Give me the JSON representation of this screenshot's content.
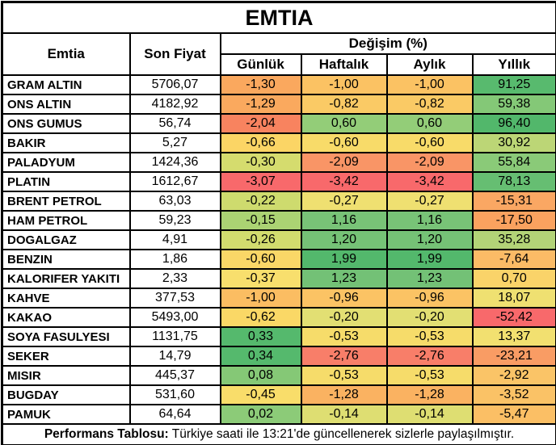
{
  "title": "EMTIA",
  "columns": {
    "emtia": "Emtia",
    "son_fiyat": "Son Fiyat",
    "degisim": "Değişim (%)",
    "sub": [
      "Günlük",
      "Haftalık",
      "Aylık",
      "Yıllık"
    ]
  },
  "rows": [
    {
      "name": "GRAM ALTIN",
      "price": "5706,07",
      "changes": [
        "-1,30",
        "-1,00",
        "-1,00",
        "91,25"
      ],
      "colors": [
        "#FAA85E",
        "#FBC263",
        "#FBC263",
        "#58BA6E"
      ]
    },
    {
      "name": "ONS ALTIN",
      "price": "4182,92",
      "changes": [
        "-1,29",
        "-0,82",
        "-0,82",
        "59,38"
      ],
      "colors": [
        "#FAA95E",
        "#FACA65",
        "#FACA65",
        "#84C877"
      ]
    },
    {
      "name": "ONS GUMUS",
      "price": "56,74",
      "changes": [
        "-2,04",
        "0,60",
        "0,60",
        "96,40"
      ],
      "colors": [
        "#F8835F",
        "#93CD78",
        "#93CD78",
        "#52B76B"
      ]
    },
    {
      "name": "BAKIR",
      "price": "5,27",
      "changes": [
        "-0,66",
        "-0,60",
        "-0,60",
        "30,92"
      ],
      "colors": [
        "#FBD565",
        "#F8DB69",
        "#F8DB69",
        "#BCD676"
      ]
    },
    {
      "name": "PALADYUM",
      "price": "1424,36",
      "changes": [
        "-0,30",
        "-2,09",
        "-2,09",
        "55,84"
      ],
      "colors": [
        "#D5DC6E",
        "#F99566",
        "#F99566",
        "#8ACA78"
      ]
    },
    {
      "name": "PLATIN",
      "price": "1612,67",
      "changes": [
        "-3,07",
        "-3,42",
        "-3,42",
        "78,13"
      ],
      "colors": [
        "#F8696B",
        "#F8696B",
        "#F8696B",
        "#66BE72"
      ]
    },
    {
      "name": "BRENT PETROL",
      "price": "63,03",
      "changes": [
        "-0,22",
        "-0,27",
        "-0,27",
        "-15,31"
      ],
      "colors": [
        "#CEDB6E",
        "#EFE071",
        "#EFE071",
        "#FAA763"
      ]
    },
    {
      "name": "HAM PETROL",
      "price": "59,23",
      "changes": [
        "-0,15",
        "1,16",
        "1,16",
        "-17,50"
      ],
      "colors": [
        "#ABD373",
        "#78C377",
        "#78C377",
        "#FAA25F"
      ]
    },
    {
      "name": "DOGALGAZ",
      "price": "4,91",
      "changes": [
        "-0,26",
        "1,20",
        "1,20",
        "35,28"
      ],
      "colors": [
        "#D2DC6E",
        "#75C276",
        "#75C276",
        "#B3D377"
      ]
    },
    {
      "name": "BENZIN",
      "price": "1,86",
      "changes": [
        "-0,60",
        "1,99",
        "1,99",
        "-7,64"
      ],
      "colors": [
        "#FAD767",
        "#53B86C",
        "#53B86C",
        "#FBBB66"
      ]
    },
    {
      "name": "KALORIFER YAKITI",
      "price": "2,33",
      "changes": [
        "-0,37",
        "1,23",
        "1,23",
        "0,70"
      ],
      "colors": [
        "#F8DF6D",
        "#73C176",
        "#73C176",
        "#FAD369"
      ]
    },
    {
      "name": "KAHVE",
      "price": "377,53",
      "changes": [
        "-1,00",
        "-0,96",
        "-0,96",
        "18,07"
      ],
      "colors": [
        "#FBBD62",
        "#FBC364",
        "#FBC364",
        "#EFE071"
      ]
    },
    {
      "name": "KAKAO",
      "price": "5493,00",
      "changes": [
        "-0,62",
        "-0,20",
        "-0,20",
        "-52,42"
      ],
      "colors": [
        "#FAD866",
        "#E2DF73",
        "#E2DF73",
        "#F8696B"
      ]
    },
    {
      "name": "SOYA FASULYESI",
      "price": "1131,75",
      "changes": [
        "0,33",
        "-0,53",
        "-0,53",
        "13,37"
      ],
      "colors": [
        "#55B96D",
        "#F6DC6A",
        "#F6DC6A",
        "#F2E070"
      ]
    },
    {
      "name": "SEKER",
      "price": "14,79",
      "changes": [
        "0,34",
        "-2,76",
        "-2,76",
        "-23,21"
      ],
      "colors": [
        "#55B96D",
        "#F87E69",
        "#F87E69",
        "#F99C64"
      ]
    },
    {
      "name": "MISIR",
      "price": "445,37",
      "changes": [
        "0,08",
        "-0,53",
        "-0,53",
        "-2,92"
      ],
      "colors": [
        "#85C876",
        "#F6DC6A",
        "#F6DC6A",
        "#FAC467"
      ]
    },
    {
      "name": "BUGDAY",
      "price": "531,60",
      "changes": [
        "-0,45",
        "-1,28",
        "-1,28",
        "-3,52"
      ],
      "colors": [
        "#F9DD6A",
        "#FAB261",
        "#FAB261",
        "#FAC266"
      ]
    },
    {
      "name": "PAMUK",
      "price": "64,64",
      "changes": [
        "0,02",
        "-0,14",
        "-0,14",
        "-5,47"
      ],
      "colors": [
        "#8CCB78",
        "#DEDE72",
        "#DEDE72",
        "#FBBF65"
      ]
    }
  ],
  "footer": {
    "label": "Performans Tablosu:",
    "text": " Türkiye saati ile 13:21'de güncellenerek sizlerle paylaşılmıştır."
  },
  "colors": {
    "border": "#000000",
    "background": "#FFFFFF",
    "scale_min_red": "#F8696B",
    "scale_mid_yellow": "#FFEB84",
    "scale_max_green": "#63BE7B"
  },
  "chart_data": {
    "type": "table",
    "title": "EMTIA",
    "columns": [
      "Emtia",
      "Son Fiyat",
      "Günlük",
      "Haftalık",
      "Aylık",
      "Yıllık"
    ],
    "group_header": {
      "label": "Değişim (%)",
      "spans": [
        "Günlük",
        "Haftalık",
        "Aylık",
        "Yıllık"
      ]
    },
    "rows": [
      {
        "emtia": "GRAM ALTIN",
        "son_fiyat": 5706.07,
        "gunluk": -1.3,
        "haftalik": -1.0,
        "aylik": -1.0,
        "yillik": 91.25
      },
      {
        "emtia": "ONS ALTIN",
        "son_fiyat": 4182.92,
        "gunluk": -1.29,
        "haftalik": -0.82,
        "aylik": -0.82,
        "yillik": 59.38
      },
      {
        "emtia": "ONS GUMUS",
        "son_fiyat": 56.74,
        "gunluk": -2.04,
        "haftalik": 0.6,
        "aylik": 0.6,
        "yillik": 96.4
      },
      {
        "emtia": "BAKIR",
        "son_fiyat": 5.27,
        "gunluk": -0.66,
        "haftalik": -0.6,
        "aylik": -0.6,
        "yillik": 30.92
      },
      {
        "emtia": "PALADYUM",
        "son_fiyat": 1424.36,
        "gunluk": -0.3,
        "haftalik": -2.09,
        "aylik": -2.09,
        "yillik": 55.84
      },
      {
        "emtia": "PLATIN",
        "son_fiyat": 1612.67,
        "gunluk": -3.07,
        "haftalik": -3.42,
        "aylik": -3.42,
        "yillik": 78.13
      },
      {
        "emtia": "BRENT PETROL",
        "son_fiyat": 63.03,
        "gunluk": -0.22,
        "haftalik": -0.27,
        "aylik": -0.27,
        "yillik": -15.31
      },
      {
        "emtia": "HAM PETROL",
        "son_fiyat": 59.23,
        "gunluk": -0.15,
        "haftalik": 1.16,
        "aylik": 1.16,
        "yillik": -17.5
      },
      {
        "emtia": "DOGALGAZ",
        "son_fiyat": 4.91,
        "gunluk": -0.26,
        "haftalik": 1.2,
        "aylik": 1.2,
        "yillik": 35.28
      },
      {
        "emtia": "BENZIN",
        "son_fiyat": 1.86,
        "gunluk": -0.6,
        "haftalik": 1.99,
        "aylik": 1.99,
        "yillik": -7.64
      },
      {
        "emtia": "KALORIFER YAKITI",
        "son_fiyat": 2.33,
        "gunluk": -0.37,
        "haftalik": 1.23,
        "aylik": 1.23,
        "yillik": 0.7
      },
      {
        "emtia": "KAHVE",
        "son_fiyat": 377.53,
        "gunluk": -1.0,
        "haftalik": -0.96,
        "aylik": -0.96,
        "yillik": 18.07
      },
      {
        "emtia": "KAKAO",
        "son_fiyat": 5493.0,
        "gunluk": -0.62,
        "haftalik": -0.2,
        "aylik": -0.2,
        "yillik": -52.42
      },
      {
        "emtia": "SOYA FASULYESI",
        "son_fiyat": 1131.75,
        "gunluk": 0.33,
        "haftalik": -0.53,
        "aylik": -0.53,
        "yillik": 13.37
      },
      {
        "emtia": "SEKER",
        "son_fiyat": 14.79,
        "gunluk": 0.34,
        "haftalik": -2.76,
        "aylik": -2.76,
        "yillik": -23.21
      },
      {
        "emtia": "MISIR",
        "son_fiyat": 445.37,
        "gunluk": 0.08,
        "haftalik": -0.53,
        "aylik": -0.53,
        "yillik": -2.92
      },
      {
        "emtia": "BUGDAY",
        "son_fiyat": 531.6,
        "gunluk": -0.45,
        "haftalik": -1.28,
        "aylik": -1.28,
        "yillik": -3.52
      },
      {
        "emtia": "PAMUK",
        "son_fiyat": 64.64,
        "gunluk": 0.02,
        "haftalik": -0.14,
        "aylik": -0.14,
        "yillik": -5.47
      }
    ],
    "notes": "Cells in the four change columns use a red-yellow-green conditional formatting scale per column"
  }
}
